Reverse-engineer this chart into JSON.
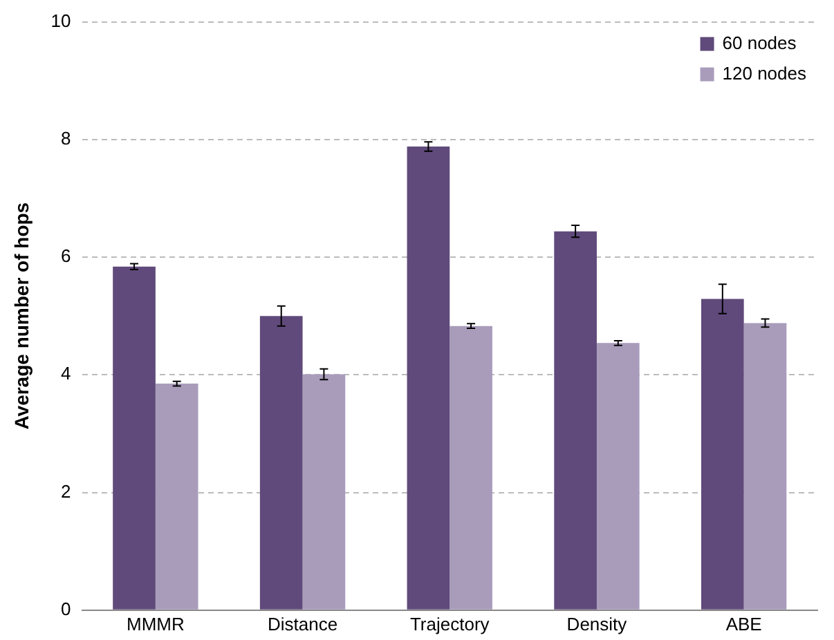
{
  "chart_data": {
    "type": "bar",
    "ylabel": "Average number of hops",
    "categories": [
      "MMMR",
      "Distance",
      "Trajectory",
      "Density",
      "ABE"
    ],
    "series": [
      {
        "name": "60 nodes",
        "color": "#604a7b",
        "values": [
          5.84,
          5.0,
          7.88,
          6.44,
          5.29
        ],
        "errors": [
          0.05,
          0.17,
          0.08,
          0.1,
          0.25
        ]
      },
      {
        "name": "120 nodes",
        "color": "#a99cbb",
        "values": [
          3.85,
          4.01,
          4.83,
          4.54,
          4.88
        ],
        "errors": [
          0.04,
          0.09,
          0.04,
          0.04,
          0.07
        ]
      }
    ],
    "ylim": [
      0,
      10
    ],
    "yticks": [
      0,
      2,
      4,
      6,
      8,
      10
    ],
    "grid": "y",
    "line_style": "dashed",
    "legend": "top right"
  }
}
